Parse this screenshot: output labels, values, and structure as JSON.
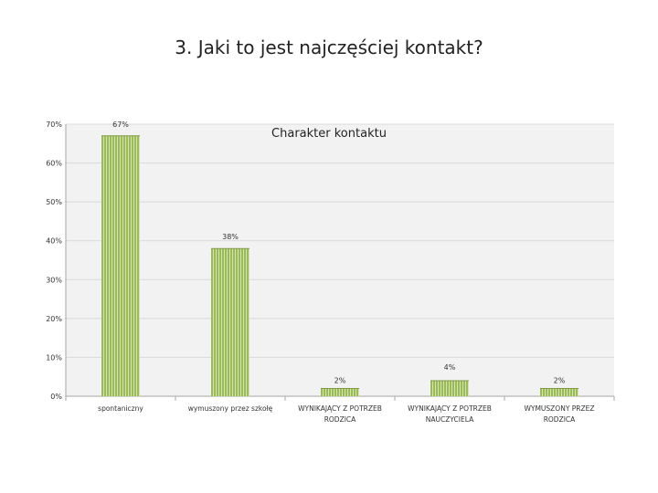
{
  "slide": {
    "title": "3. Jaki to jest najczęściej kontakt?"
  },
  "chart_data": {
    "type": "bar",
    "title": "Charakter kontaktu",
    "categories": [
      [
        "spontaniczny"
      ],
      [
        "wymuszony przez szkołę"
      ],
      [
        "WYNIKAJĄCY Z POTRZEB",
        "RODZICA"
      ],
      [
        "WYNIKAJĄCY Z POTRZEB",
        "NAUCZYCIELA"
      ],
      [
        "WYMUSZONY PRZEZ",
        "RODZICA"
      ]
    ],
    "values": [
      67,
      38,
      2,
      4,
      2
    ],
    "data_labels": [
      "67%",
      "38%",
      "2%",
      "4%",
      "2%"
    ],
    "ylim": [
      0,
      70
    ],
    "yticks": [
      0,
      10,
      20,
      30,
      40,
      50,
      60,
      70
    ],
    "ytick_labels": [
      "0%",
      "10%",
      "20%",
      "30%",
      "40%",
      "50%",
      "60%",
      "70%"
    ],
    "xlabel": "",
    "ylabel": "",
    "grid": true,
    "legend": "none",
    "colors": {
      "bar": "#9bbb59",
      "bar_stripe": "#d4e3b0",
      "grid": "#d9d9d9",
      "plot_background": "#f2f2f2",
      "axis": "#a6a6a6"
    }
  }
}
